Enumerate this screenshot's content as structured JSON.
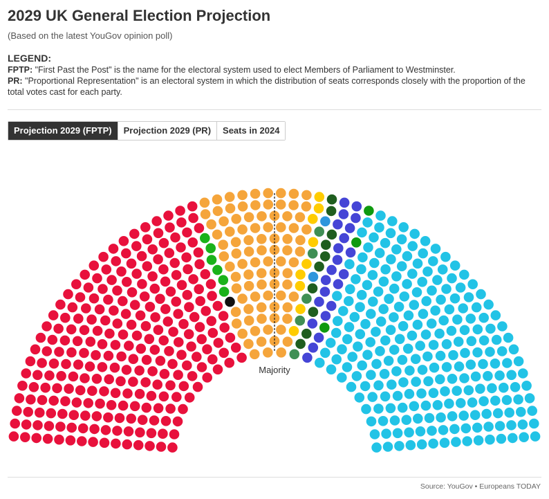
{
  "header": {
    "title": "2029 UK General Election Projection",
    "subtitle": "(Based on the latest YouGov opinion poll)"
  },
  "legend": {
    "heading": "LEGEND:",
    "fptp_key": "FPTP:",
    "fptp_text": " \"First Past the Post\" is the name for the electoral system used to elect Members of Parliament to Westminster.",
    "pr_key": "PR:",
    "pr_text": " \"Proportional Representation\" is an electoral system in which the distribution of seats corresponds closely with the proportion of the total votes cast for each party."
  },
  "tabs": [
    {
      "label": "Projection 2029 (FPTP)",
      "active": true
    },
    {
      "label": "Projection 2029 (PR)",
      "active": false
    },
    {
      "label": "Seats in 2024",
      "active": false
    }
  ],
  "chart_data": {
    "type": "parliament",
    "total_seats": 650,
    "rows": 15,
    "majority_label": "Majority",
    "majority_seats": 326,
    "series": [
      {
        "color": "#e8113c",
        "seats": 258
      },
      {
        "color": "#1ab21a",
        "seats": 6
      },
      {
        "color": "#111111",
        "seats": 1
      },
      {
        "color": "#f5a53b",
        "seats": 90
      },
      {
        "color": "#ffcc00",
        "seats": 9
      },
      {
        "color": "#3f8f55",
        "seats": 5
      },
      {
        "color": "#2e96dd",
        "seats": 2
      },
      {
        "color": "#1f5e1f",
        "seats": 10
      },
      {
        "color": "#4545d6",
        "seats": 22
      },
      {
        "color": "#0f9a0f",
        "seats": 3
      },
      {
        "color": "#22c3e6",
        "seats": 244
      }
    ]
  },
  "footer": {
    "source": "Source: YouGov • Europeans TODAY"
  }
}
